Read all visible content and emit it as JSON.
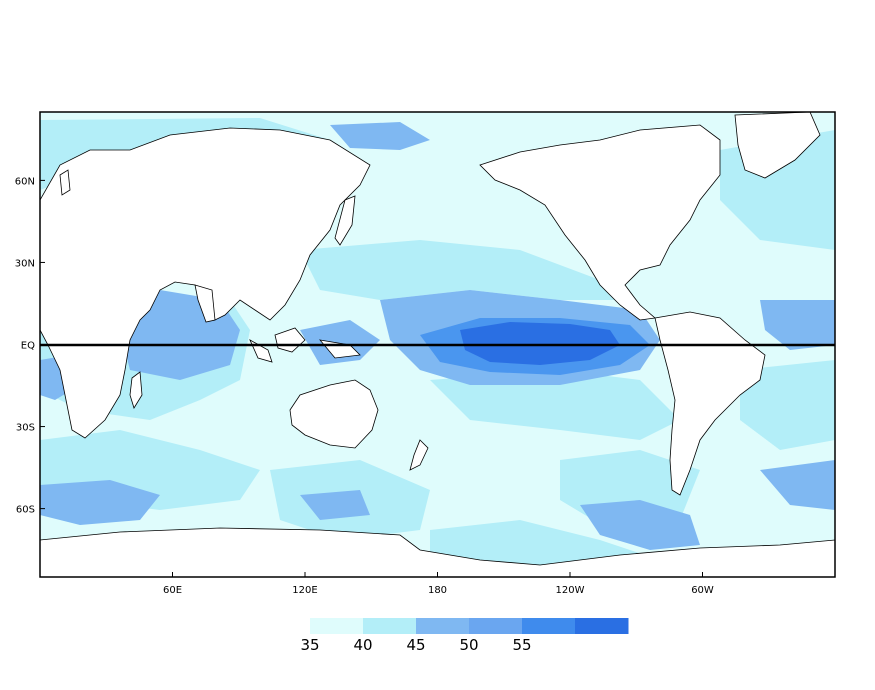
{
  "map": {
    "x_ticks": [
      {
        "lon": 60,
        "label": "60E"
      },
      {
        "lon": 120,
        "label": "120E"
      },
      {
        "lon": 180,
        "label": "180"
      },
      {
        "lon": 240,
        "label": "120W"
      },
      {
        "lon": 300,
        "label": "60W"
      }
    ],
    "y_ticks": [
      {
        "lat": 60,
        "label": "60N"
      },
      {
        "lat": 30,
        "label": "30N"
      },
      {
        "lat": 0,
        "label": "EQ"
      },
      {
        "lat": -30,
        "label": "30S"
      },
      {
        "lat": -60,
        "label": "60S"
      }
    ],
    "lon_range": [
      0,
      360
    ],
    "lat_range": [
      -85,
      85
    ],
    "equator_line": true,
    "colors": {
      "land": "#ffffff",
      "coast": "#000000",
      "base": "#dffcfc",
      "c40": "#b3eef8",
      "c45": "#7fb8f2",
      "c50": "#4a96ef",
      "c55": "#2a6fe3"
    }
  },
  "legend": {
    "labels": [
      "35",
      "40",
      "45",
      "50",
      "55"
    ],
    "colors": [
      "#dffcfc",
      "#b3eef8",
      "#7fb8f2",
      "#6aa6f0",
      "#3f8bed",
      "#2a6fe3"
    ]
  }
}
